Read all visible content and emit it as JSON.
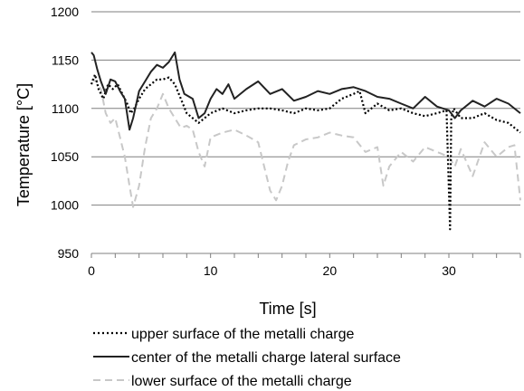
{
  "chart_data": {
    "type": "line",
    "xlabel": "Time [s]",
    "ylabel": "Temperature  [°C]",
    "xlim": [
      0,
      36
    ],
    "ylim": [
      950,
      1200
    ],
    "x_ticks": [
      "0",
      "10",
      "20",
      "30"
    ],
    "x_tick_values": [
      0,
      10,
      20,
      30
    ],
    "y_ticks": [
      "950",
      "1000",
      "1050",
      "1100",
      "1150",
      "1200"
    ],
    "y_tick_values": [
      950,
      1000,
      1050,
      1100,
      1150,
      1200
    ],
    "grid": "horizontal",
    "legend_position": "bottom",
    "series": [
      {
        "name": "upper surface of the metalli charge",
        "style": "dotted",
        "color": "#000000",
        "x": [
          0,
          0.3,
          0.6,
          1.0,
          1.4,
          1.8,
          2.2,
          2.6,
          3.0,
          3.3,
          3.6,
          4.0,
          4.5,
          5.0,
          5.5,
          6.0,
          6.5,
          7.0,
          7.5,
          8.0,
          8.5,
          9.0,
          9.5,
          10.0,
          11.0,
          12.0,
          13.0,
          14.0,
          15.0,
          16.0,
          17.0,
          18.0,
          19.0,
          20.0,
          21.0,
          22.0,
          22.5,
          23.0,
          24.0,
          25.0,
          26.0,
          27.0,
          28.0,
          29.0,
          29.8,
          30.1,
          30.2,
          30.4,
          30.7,
          31.0,
          32.0,
          33.0,
          34.0,
          35.0,
          36.0
        ],
        "values": [
          1125,
          1135,
          1120,
          1110,
          1125,
          1120,
          1125,
          1115,
          1105,
          1095,
          1100,
          1110,
          1120,
          1125,
          1130,
          1130,
          1132,
          1125,
          1110,
          1095,
          1090,
          1085,
          1090,
          1095,
          1100,
          1095,
          1098,
          1100,
          1100,
          1098,
          1095,
          1100,
          1098,
          1100,
          1110,
          1115,
          1118,
          1095,
          1105,
          1098,
          1100,
          1095,
          1092,
          1095,
          1098,
          975,
          1090,
          1100,
          1095,
          1090,
          1090,
          1095,
          1088,
          1085,
          1075
        ]
      },
      {
        "name": "center of the metalli charge lateral surface",
        "style": "solid",
        "color": "#222222",
        "x": [
          0,
          0.2,
          0.5,
          0.8,
          1.2,
          1.6,
          2.0,
          2.4,
          2.8,
          3.2,
          3.5,
          4.0,
          4.5,
          5.0,
          5.5,
          6.0,
          6.5,
          7.0,
          7.4,
          7.8,
          8.5,
          9.0,
          9.5,
          10.0,
          10.5,
          11.0,
          11.5,
          12.0,
          13.0,
          14.0,
          15.0,
          16.0,
          17.0,
          18.0,
          19.0,
          20.0,
          21.0,
          22.0,
          23.0,
          24.0,
          25.0,
          26.0,
          27.0,
          28.0,
          29.0,
          30.0,
          30.5,
          31.0,
          32.0,
          33.0,
          34.0,
          35.0,
          36.0
        ],
        "values": [
          1158,
          1155,
          1140,
          1128,
          1115,
          1130,
          1128,
          1118,
          1110,
          1078,
          1090,
          1118,
          1128,
          1138,
          1145,
          1142,
          1148,
          1158,
          1130,
          1115,
          1110,
          1090,
          1095,
          1110,
          1120,
          1115,
          1125,
          1110,
          1120,
          1128,
          1115,
          1120,
          1108,
          1112,
          1118,
          1115,
          1120,
          1122,
          1118,
          1112,
          1110,
          1105,
          1100,
          1112,
          1102,
          1098,
          1090,
          1098,
          1108,
          1102,
          1110,
          1105,
          1095
        ]
      },
      {
        "name": "lower surface of the metalli charge",
        "style": "dashed",
        "color": "#c8c8c8",
        "x": [
          0,
          0.4,
          0.8,
          1.2,
          1.6,
          2.0,
          2.4,
          2.8,
          3.2,
          3.5,
          4.0,
          4.5,
          5.0,
          5.5,
          6.0,
          6.5,
          7.0,
          7.5,
          8.0,
          8.5,
          9.0,
          9.5,
          10.0,
          11.0,
          12.0,
          13.0,
          14.0,
          14.5,
          15.0,
          15.5,
          16.0,
          16.5,
          17.0,
          18.0,
          19.0,
          20.0,
          21.0,
          22.0,
          23.0,
          24.0,
          24.5,
          25.0,
          26.0,
          27.0,
          28.0,
          29.0,
          30.0,
          30.5,
          31.0,
          32.0,
          33.0,
          34.0,
          35.0,
          35.5,
          36.0
        ],
        "values": [
          1130,
          1128,
          1120,
          1095,
          1085,
          1090,
          1070,
          1050,
          1020,
          998,
          1020,
          1060,
          1090,
          1100,
          1115,
          1100,
          1090,
          1080,
          1082,
          1078,
          1055,
          1040,
          1070,
          1075,
          1078,
          1072,
          1065,
          1040,
          1015,
          1005,
          1020,
          1045,
          1062,
          1068,
          1070,
          1075,
          1072,
          1070,
          1055,
          1060,
          1020,
          1040,
          1055,
          1045,
          1060,
          1055,
          1050,
          1040,
          1058,
          1030,
          1065,
          1050,
          1060,
          1062,
          1005
        ]
      }
    ]
  }
}
